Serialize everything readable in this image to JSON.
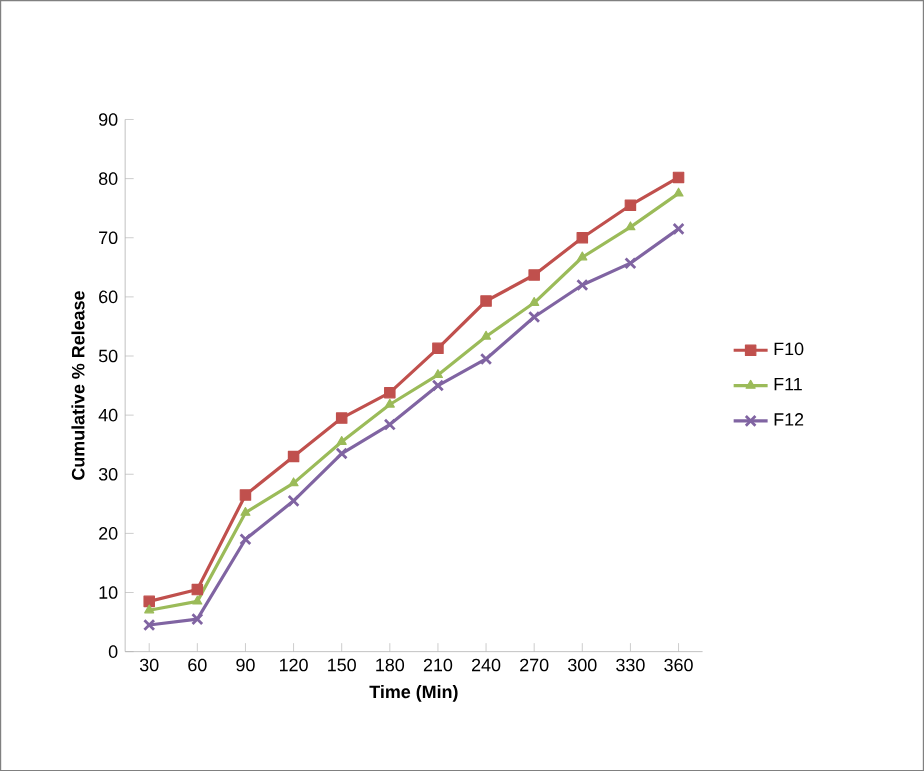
{
  "chart_data": {
    "type": "line",
    "xlabel": "Time (Min)",
    "ylabel": "Cumulative % Release",
    "categories": [
      "30",
      "60",
      "90",
      "120",
      "150",
      "180",
      "210",
      "240",
      "270",
      "300",
      "330",
      "360"
    ],
    "ylim": [
      0,
      90
    ],
    "yticks": [
      0,
      10,
      20,
      30,
      40,
      50,
      60,
      70,
      80,
      90
    ],
    "grid": false,
    "legend": "right",
    "series": [
      {
        "name": "F10",
        "color": "#c0504d",
        "marker": "square",
        "values": [
          8.5,
          10.5,
          26.5,
          33,
          39.5,
          43.8,
          51.3,
          59.3,
          63.7,
          70,
          75.5,
          80.2
        ]
      },
      {
        "name": "F11",
        "color": "#9bbb59",
        "marker": "triangle",
        "values": [
          7,
          8.5,
          23.5,
          28.5,
          35.5,
          41.8,
          46.8,
          53.3,
          59,
          66.7,
          71.8,
          77.5
        ]
      },
      {
        "name": "F12",
        "color": "#8064a2",
        "marker": "cross",
        "values": [
          4.5,
          5.5,
          19,
          25.5,
          33.5,
          38.4,
          45,
          49.5,
          56.6,
          62,
          65.7,
          71.5
        ]
      }
    ]
  }
}
